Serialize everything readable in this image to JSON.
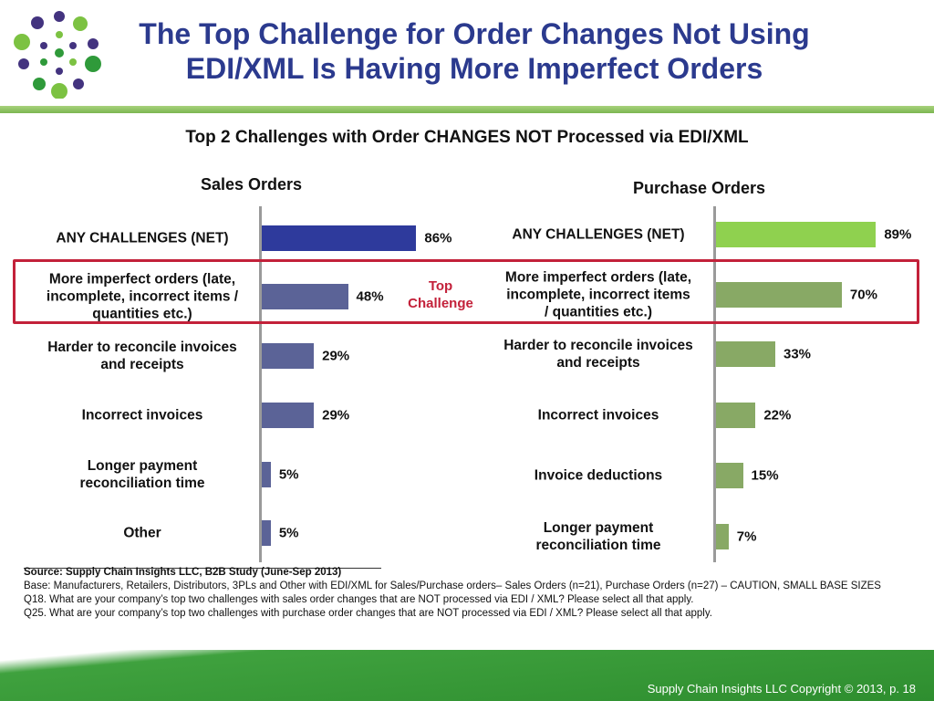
{
  "slide": {
    "title_line1": "The Top Challenge for Order Changes Not Using",
    "title_line2": "EDI/XML Is Having More Imperfect Orders",
    "subtitle": "Top 2 Challenges with Order CHANGES NOT Processed via EDI/XML",
    "highlight_label_line1": "Top",
    "highlight_label_line2": "Challenge"
  },
  "chart_data": [
    {
      "type": "bar",
      "orientation": "horizontal",
      "title": "Sales Orders",
      "categories": [
        "ANY CHALLENGES (NET)",
        "More imperfect orders (late, incomplete, incorrect items / quantities etc.)",
        "Harder to reconcile invoices and receipts",
        "Incorrect invoices",
        "Longer payment reconciliation time",
        "Other"
      ],
      "category_lines": [
        [
          "ANY CHALLENGES (NET)"
        ],
        [
          "More imperfect orders (late,",
          "incomplete, incorrect items /",
          "quantities etc.)"
        ],
        [
          "Harder to reconcile invoices",
          "and receipts"
        ],
        [
          "Incorrect invoices"
        ],
        [
          "Longer payment",
          "reconciliation time"
        ],
        [
          "Other"
        ]
      ],
      "values": [
        86,
        48,
        29,
        29,
        5,
        5
      ],
      "labels": [
        "86%",
        "48%",
        "29%",
        "29%",
        "5%",
        "5%"
      ],
      "colors": [
        "#2e3a9c",
        "#5b6397",
        "#5b6397",
        "#5b6397",
        "#5b6397",
        "#5b6397"
      ],
      "xlim": [
        0,
        100
      ]
    },
    {
      "type": "bar",
      "orientation": "horizontal",
      "title": "Purchase Orders",
      "categories": [
        "ANY CHALLENGES (NET)",
        "More imperfect orders (late, incomplete, incorrect items / quantities etc.)",
        "Harder to reconcile invoices and receipts",
        "Incorrect invoices",
        "Invoice deductions",
        "Longer payment reconciliation time"
      ],
      "category_lines": [
        [
          "ANY CHALLENGES (NET)"
        ],
        [
          "More imperfect orders (late,",
          "incomplete, incorrect items",
          "/ quantities etc.)"
        ],
        [
          "Harder to reconcile invoices",
          "and receipts"
        ],
        [
          "Incorrect invoices"
        ],
        [
          "Invoice deductions"
        ],
        [
          "Longer payment",
          "reconciliation time"
        ]
      ],
      "values": [
        89,
        70,
        33,
        22,
        15,
        7
      ],
      "labels": [
        "89%",
        "70%",
        "33%",
        "22%",
        "15%",
        "7%"
      ],
      "colors": [
        "#8fd14f",
        "#88a965",
        "#88a965",
        "#88a965",
        "#88a965",
        "#88a965"
      ],
      "xlim": [
        0,
        100
      ]
    }
  ],
  "notes": {
    "source": "Source:  Supply Chain Insights LLC, B2B Study (June-Sep 2013)",
    "base": "Base:  Manufacturers,  Retailers, Distributors, 3PLs and Other with EDI/XML for Sales/Purchase orders– Sales Orders (n=21), Purchase Orders (n=27) – CAUTION, SMALL BASE SIZES",
    "q18": "Q18. What are your company’s top two challenges with sales order changes that are NOT processed via EDI / XML?  Please select all that apply.",
    "q25": "Q25. What are your company’s top two challenges with purchase order changes that are NOT processed via EDI / XML?  Please select all that apply."
  },
  "footer": {
    "copyright": "Supply Chain Insights LLC Copyright © 2013, p. 18"
  },
  "colors": {
    "title": "#2b3a8e",
    "highlight": "#c3213a",
    "footer_green": "#3fa13e"
  }
}
